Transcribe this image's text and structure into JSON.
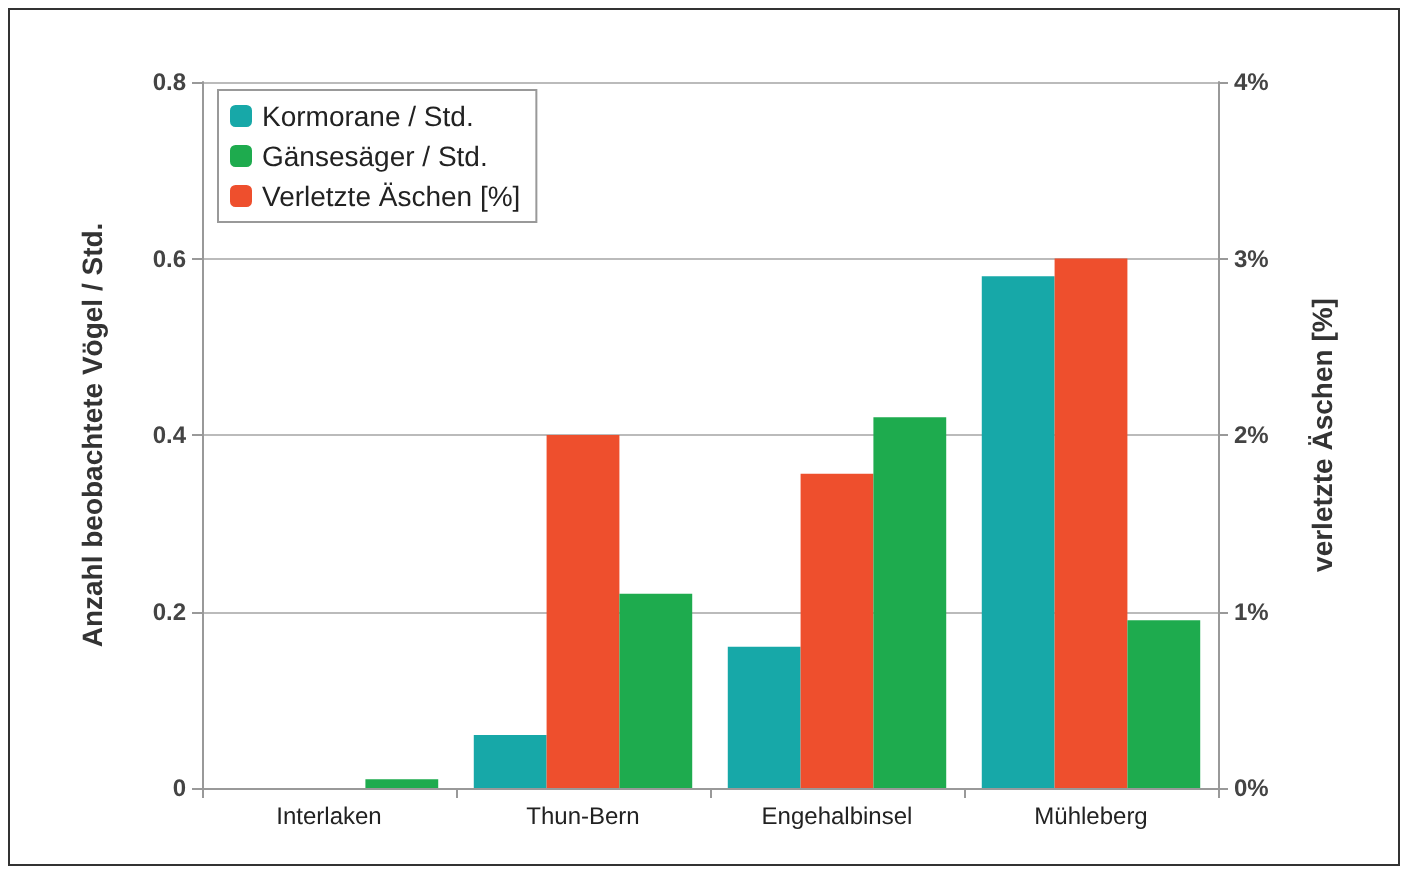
{
  "chart_data": {
    "type": "bar",
    "categories": [
      "Interlaken",
      "Thun-Bern",
      "Engehalbinsel",
      "Mühleberg"
    ],
    "ylabel": "Anzahl beobachtete Vögel / Std.",
    "y2label": "verletzte Äschen [%]",
    "series": [
      {
        "name": "Kormorane / Std.",
        "color": "#17a8a8",
        "values": [
          0,
          0.06,
          0.16,
          0.58
        ]
      },
      {
        "name": "Verletzte Äschen [%]",
        "color": "#ee4f2d",
        "axis": "y2",
        "values": [
          0,
          2.0,
          1.78,
          3.0
        ]
      },
      {
        "name": "Gänsesäger / Std.",
        "color": "#1eab4e",
        "values": [
          0.01,
          0.22,
          0.42,
          0.19
        ]
      }
    ],
    "ylim": [
      0,
      0.8
    ],
    "yticks": [
      0,
      0.2,
      0.4,
      0.6,
      0.8
    ],
    "y2lim": [
      0,
      4
    ],
    "y2ticks": [
      {
        "value": 0,
        "label": "0%"
      },
      {
        "value": 1,
        "label": "1%"
      },
      {
        "value": 2,
        "label": "2%"
      },
      {
        "value": 3,
        "label": "3%"
      },
      {
        "value": 4,
        "label": "4%"
      }
    ],
    "grid": "y",
    "legend": "top left"
  }
}
